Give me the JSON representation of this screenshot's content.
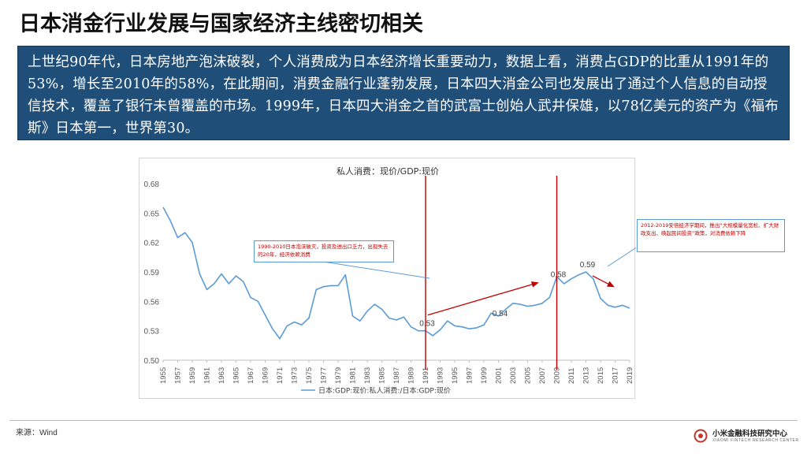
{
  "slide": {
    "title": "日本消金行业发展与国家经济主线密切相关",
    "summary": "上世纪90年代，日本房地产泡沫破裂，个人消费成为日本经济增长重要动力，数据上看，消费占GDP的比重从1991年的53%，增长至2010年的58%，在此期间，消费金融行业蓬勃发展，日本四大消金公司也发展出了通过个人信息的自动授信技术，覆盖了银行未曾覆盖的市场。1999年，日本四大消金之首的武富士创始人武井保雄，以78亿美元的资产为《福布斯》日本第一，世界第30。",
    "source": "来源：Wind",
    "logo_cn": "小米金融科技研究中心",
    "logo_en": "XIAOMI FINTECH RESEARCH CENTER"
  },
  "callouts": {
    "left": "1990-2010日本泡沫破灭，投资及进出口乏力，出现失去的20年，经济依赖消费",
    "right": "2012-2019安倍经济学期间，推出“大规模量化宽松、扩大财政支出、唤起民间投资”政策，对消费依赖下降"
  },
  "chart_data": {
    "type": "line",
    "title": "私人消费：现价/GDP:现价",
    "legend": "日本:GDP:现价:私人消费:/日本:GDP:现价",
    "legend_position": "bottom",
    "ylim": [
      0.5,
      0.68
    ],
    "yticks": [
      "0.68",
      "0.65",
      "0.62",
      "0.59",
      "0.56",
      "0.53",
      "0.50"
    ],
    "xticks": [
      "1955",
      "1957",
      "1959",
      "1961",
      "1963",
      "1965",
      "1967",
      "1969",
      "1971",
      "1973",
      "1975",
      "1977",
      "1979",
      "1981",
      "1983",
      "1985",
      "1987",
      "1989",
      "1991",
      "1993",
      "1995",
      "1997",
      "1999",
      "2001",
      "2003",
      "2005",
      "2007",
      "2009",
      "2011",
      "2013",
      "2015",
      "2017",
      "2019"
    ],
    "x_start": 1955,
    "x_end": 2019,
    "x": [
      1955,
      1956,
      1957,
      1958,
      1959,
      1960,
      1961,
      1962,
      1963,
      1964,
      1965,
      1966,
      1967,
      1968,
      1969,
      1970,
      1971,
      1972,
      1973,
      1974,
      1975,
      1976,
      1977,
      1978,
      1979,
      1980,
      1981,
      1982,
      1983,
      1984,
      1985,
      1986,
      1987,
      1988,
      1989,
      1990,
      1991,
      1992,
      1993,
      1994,
      1995,
      1996,
      1997,
      1998,
      1999,
      2000,
      2001,
      2002,
      2003,
      2004,
      2005,
      2006,
      2007,
      2008,
      2009,
      2010,
      2011,
      2012,
      2013,
      2014,
      2015,
      2016,
      2017,
      2018,
      2019
    ],
    "values": [
      0.656,
      0.642,
      0.625,
      0.63,
      0.62,
      0.588,
      0.572,
      0.578,
      0.588,
      0.578,
      0.586,
      0.58,
      0.564,
      0.56,
      0.546,
      0.532,
      0.522,
      0.535,
      0.539,
      0.536,
      0.543,
      0.572,
      0.575,
      0.576,
      0.576,
      0.587,
      0.545,
      0.54,
      0.55,
      0.557,
      0.552,
      0.543,
      0.541,
      0.544,
      0.534,
      0.53,
      0.53,
      0.525,
      0.531,
      0.54,
      0.535,
      0.534,
      0.532,
      0.533,
      0.536,
      0.548,
      0.545,
      0.552,
      0.558,
      0.557,
      0.555,
      0.556,
      0.558,
      0.564,
      0.585,
      0.578,
      0.583,
      0.587,
      0.59,
      0.583,
      0.563,
      0.556,
      0.554,
      0.556,
      0.553
    ],
    "data_labels": [
      {
        "x": 1991,
        "y": 0.53,
        "text": "0.53"
      },
      {
        "x": 2001,
        "y": 0.54,
        "text": "0.54"
      },
      {
        "x": 2009,
        "y": 0.58,
        "text": "0.58"
      },
      {
        "x": 2013,
        "y": 0.59,
        "text": "0.59"
      }
    ],
    "vertical_markers": [
      1991,
      2009
    ],
    "colors": {
      "line": "#5b9bd5",
      "marker": "#c00000",
      "axis_text": "#595959"
    }
  }
}
